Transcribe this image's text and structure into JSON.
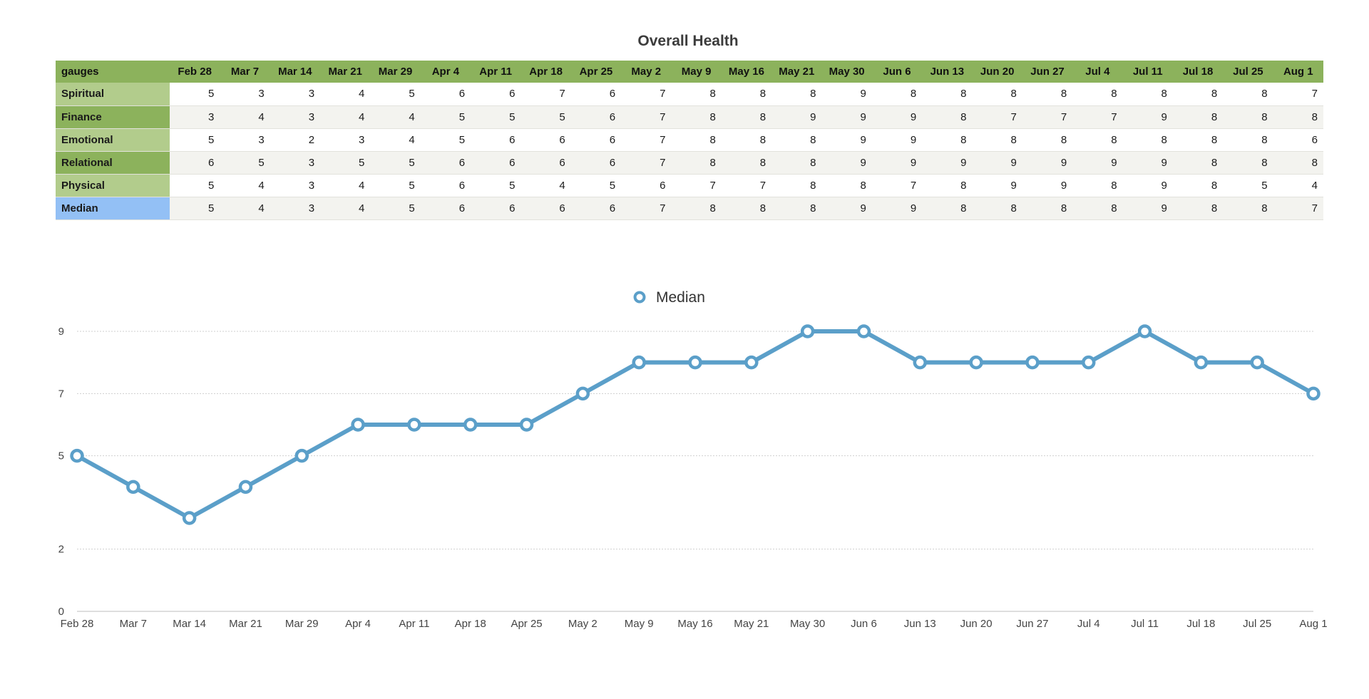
{
  "chart_data": {
    "type": "line",
    "title": "Overall Health",
    "table": {
      "corner_label": "gauges",
      "columns": [
        "Feb 28",
        "Mar 7",
        "Mar 14",
        "Mar 21",
        "Mar 29",
        "Apr 4",
        "Apr 11",
        "Apr 18",
        "Apr 25",
        "May 2",
        "May 9",
        "May 16",
        "May 21",
        "May 30",
        "Jun 6",
        "Jun 13",
        "Jun 20",
        "Jun 27",
        "Jul 4",
        "Jul 11",
        "Jul 18",
        "Jul 25",
        "Aug 1"
      ],
      "rows": [
        {
          "label": "Spiritual",
          "values": [
            5,
            3,
            3,
            4,
            5,
            6,
            6,
            7,
            6,
            7,
            8,
            8,
            8,
            9,
            8,
            8,
            8,
            8,
            8,
            8,
            8,
            8,
            7
          ]
        },
        {
          "label": "Finance",
          "values": [
            3,
            4,
            3,
            4,
            4,
            5,
            5,
            5,
            6,
            7,
            8,
            8,
            9,
            9,
            9,
            8,
            7,
            7,
            7,
            9,
            8,
            8,
            8
          ]
        },
        {
          "label": "Emotional",
          "values": [
            5,
            3,
            2,
            3,
            4,
            5,
            6,
            6,
            6,
            7,
            8,
            8,
            8,
            9,
            9,
            8,
            8,
            8,
            8,
            8,
            8,
            8,
            6
          ]
        },
        {
          "label": "Relational",
          "values": [
            6,
            5,
            3,
            5,
            5,
            6,
            6,
            6,
            6,
            7,
            8,
            8,
            8,
            9,
            9,
            9,
            9,
            9,
            9,
            9,
            8,
            8,
            8
          ]
        },
        {
          "label": "Physical",
          "values": [
            5,
            4,
            3,
            4,
            5,
            6,
            5,
            4,
            5,
            6,
            7,
            7,
            8,
            8,
            7,
            8,
            9,
            9,
            8,
            9,
            8,
            5,
            4
          ]
        },
        {
          "label": "Median",
          "values": [
            5,
            4,
            3,
            4,
            5,
            6,
            6,
            6,
            6,
            7,
            8,
            8,
            8,
            9,
            9,
            8,
            8,
            8,
            8,
            9,
            8,
            8,
            7
          ]
        }
      ]
    },
    "categories": [
      "Feb 28",
      "Mar 7",
      "Mar 14",
      "Mar 21",
      "Mar 29",
      "Apr 4",
      "Apr 11",
      "Apr 18",
      "Apr 25",
      "May 2",
      "May 9",
      "May 16",
      "May 21",
      "May 30",
      "Jun 6",
      "Jun 13",
      "Jun 20",
      "Jun 27",
      "Jul 4",
      "Jul 11",
      "Jul 18",
      "Jul 25",
      "Aug 1"
    ],
    "series": [
      {
        "name": "Median",
        "values": [
          5,
          4,
          3,
          4,
          5,
          6,
          6,
          6,
          6,
          7,
          8,
          8,
          8,
          9,
          9,
          8,
          8,
          8,
          8,
          9,
          8,
          8,
          7
        ],
        "color": "#5b9fc9"
      }
    ],
    "y_ticks": [
      0,
      2,
      5,
      7,
      9
    ],
    "ylim": [
      0,
      9
    ],
    "grid": true,
    "legend": "top-center"
  }
}
